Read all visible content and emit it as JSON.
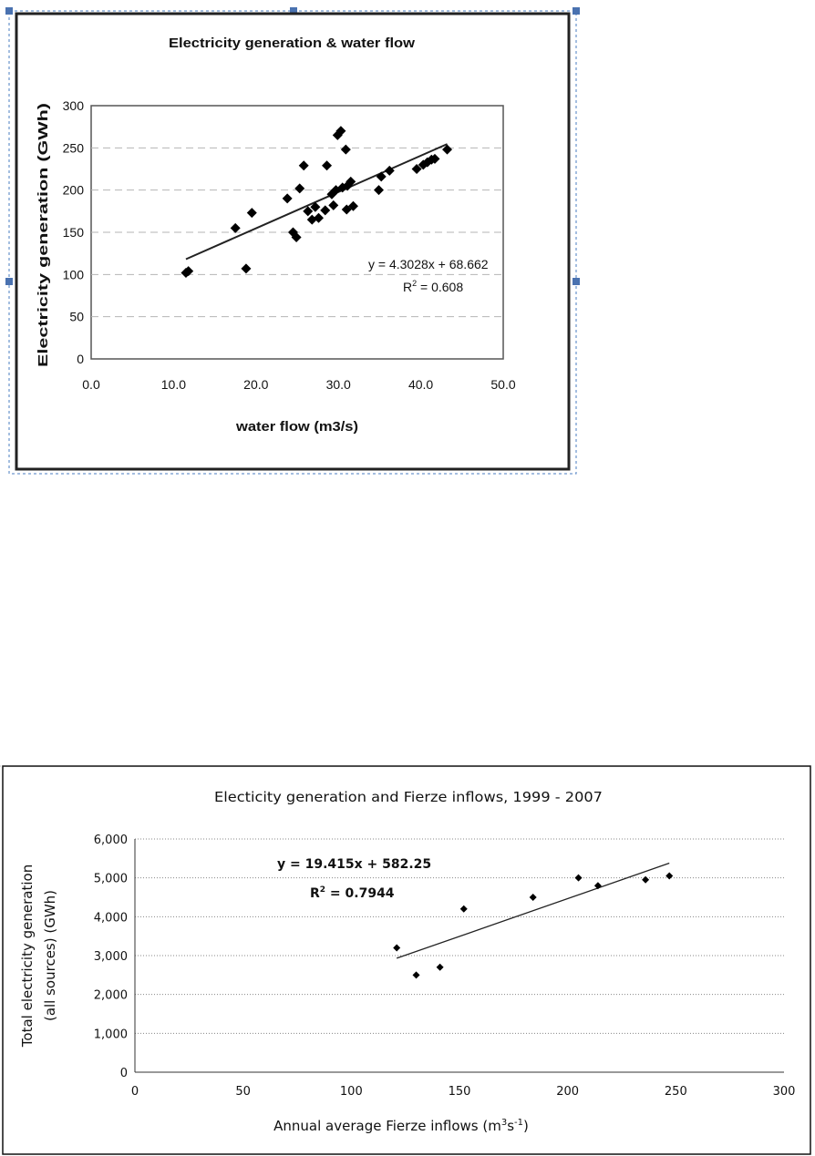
{
  "chart_data": [
    {
      "type": "scatter",
      "title": "Electricity generation & water flow",
      "xlabel": "water flow (m3/s)",
      "ylabel": "Electricity generation (GWh)",
      "xlim": [
        0,
        50
      ],
      "ylim": [
        0,
        300
      ],
      "x_ticks": [
        "0.0",
        "10.0",
        "20.0",
        "30.0",
        "40.0",
        "50.0"
      ],
      "y_ticks": [
        "0",
        "50",
        "100",
        "150",
        "200",
        "250",
        "300"
      ],
      "grid": "horizontal dashed",
      "legend": "none",
      "marker_color": "#000000",
      "points": [
        [
          11.5,
          102
        ],
        [
          11.8,
          104
        ],
        [
          17.5,
          155
        ],
        [
          18.8,
          107
        ],
        [
          19.5,
          173
        ],
        [
          23.8,
          190
        ],
        [
          24.5,
          150
        ],
        [
          24.9,
          144
        ],
        [
          25.3,
          202
        ],
        [
          25.8,
          229
        ],
        [
          26.3,
          175
        ],
        [
          26.8,
          165
        ],
        [
          27.2,
          180
        ],
        [
          27.6,
          167
        ],
        [
          28.4,
          176
        ],
        [
          28.6,
          229
        ],
        [
          29.2,
          195
        ],
        [
          29.4,
          182
        ],
        [
          29.7,
          200
        ],
        [
          29.9,
          265
        ],
        [
          30.3,
          270
        ],
        [
          30.5,
          203
        ],
        [
          30.9,
          248
        ],
        [
          31.0,
          177
        ],
        [
          31.1,
          205
        ],
        [
          31.5,
          210
        ],
        [
          31.8,
          181
        ],
        [
          34.9,
          200
        ],
        [
          35.2,
          216
        ],
        [
          36.2,
          223
        ],
        [
          39.5,
          225
        ],
        [
          40.3,
          230
        ],
        [
          40.8,
          233
        ],
        [
          41.3,
          236
        ],
        [
          41.7,
          237
        ],
        [
          43.2,
          248
        ]
      ],
      "trendline": {
        "slope": 4.3028,
        "intercept": 68.662,
        "x_range": [
          11.5,
          43.2
        ]
      },
      "equation_label": "y = 4.3028x + 68.662",
      "r2_label_prefix": "R",
      "r2_label_sup": "2",
      "r2_label_value": " = 0.608"
    },
    {
      "type": "scatter",
      "title": "Electicity generation and Fierze inflows, 1999 - 2007",
      "xlabel_prefix": "Annual average Fierze inflows (m",
      "xlabel_sup1": "3",
      "xlabel_mid": "s",
      "xlabel_sup2": "-1",
      "xlabel_suffix": ")",
      "ylabel_line1": "Total electricity generation",
      "ylabel_line2": "(all sources) (GWh)",
      "xlim": [
        0,
        300
      ],
      "ylim": [
        0,
        6000
      ],
      "x_ticks": [
        "0",
        "50",
        "100",
        "150",
        "200",
        "250",
        "300"
      ],
      "y_ticks": [
        "0",
        "1,000",
        "2,000",
        "3,000",
        "4,000",
        "5,000",
        "6,000"
      ],
      "grid": "horizontal dotted",
      "legend": "none",
      "marker_color": "#000000",
      "points": [
        [
          121,
          3200
        ],
        [
          130,
          2500
        ],
        [
          141,
          2700
        ],
        [
          152,
          4200
        ],
        [
          184,
          4500
        ],
        [
          205,
          5000
        ],
        [
          214,
          4800
        ],
        [
          236,
          4950
        ],
        [
          247,
          5050
        ]
      ],
      "trendline": {
        "slope": 19.415,
        "intercept": 582.25,
        "x_range": [
          121,
          247
        ]
      },
      "equation_label": "y = 19.415x + 582.25",
      "r2_label_prefix": "R",
      "r2_label_sup": "2",
      "r2_label_value": " = 0.7944"
    }
  ]
}
